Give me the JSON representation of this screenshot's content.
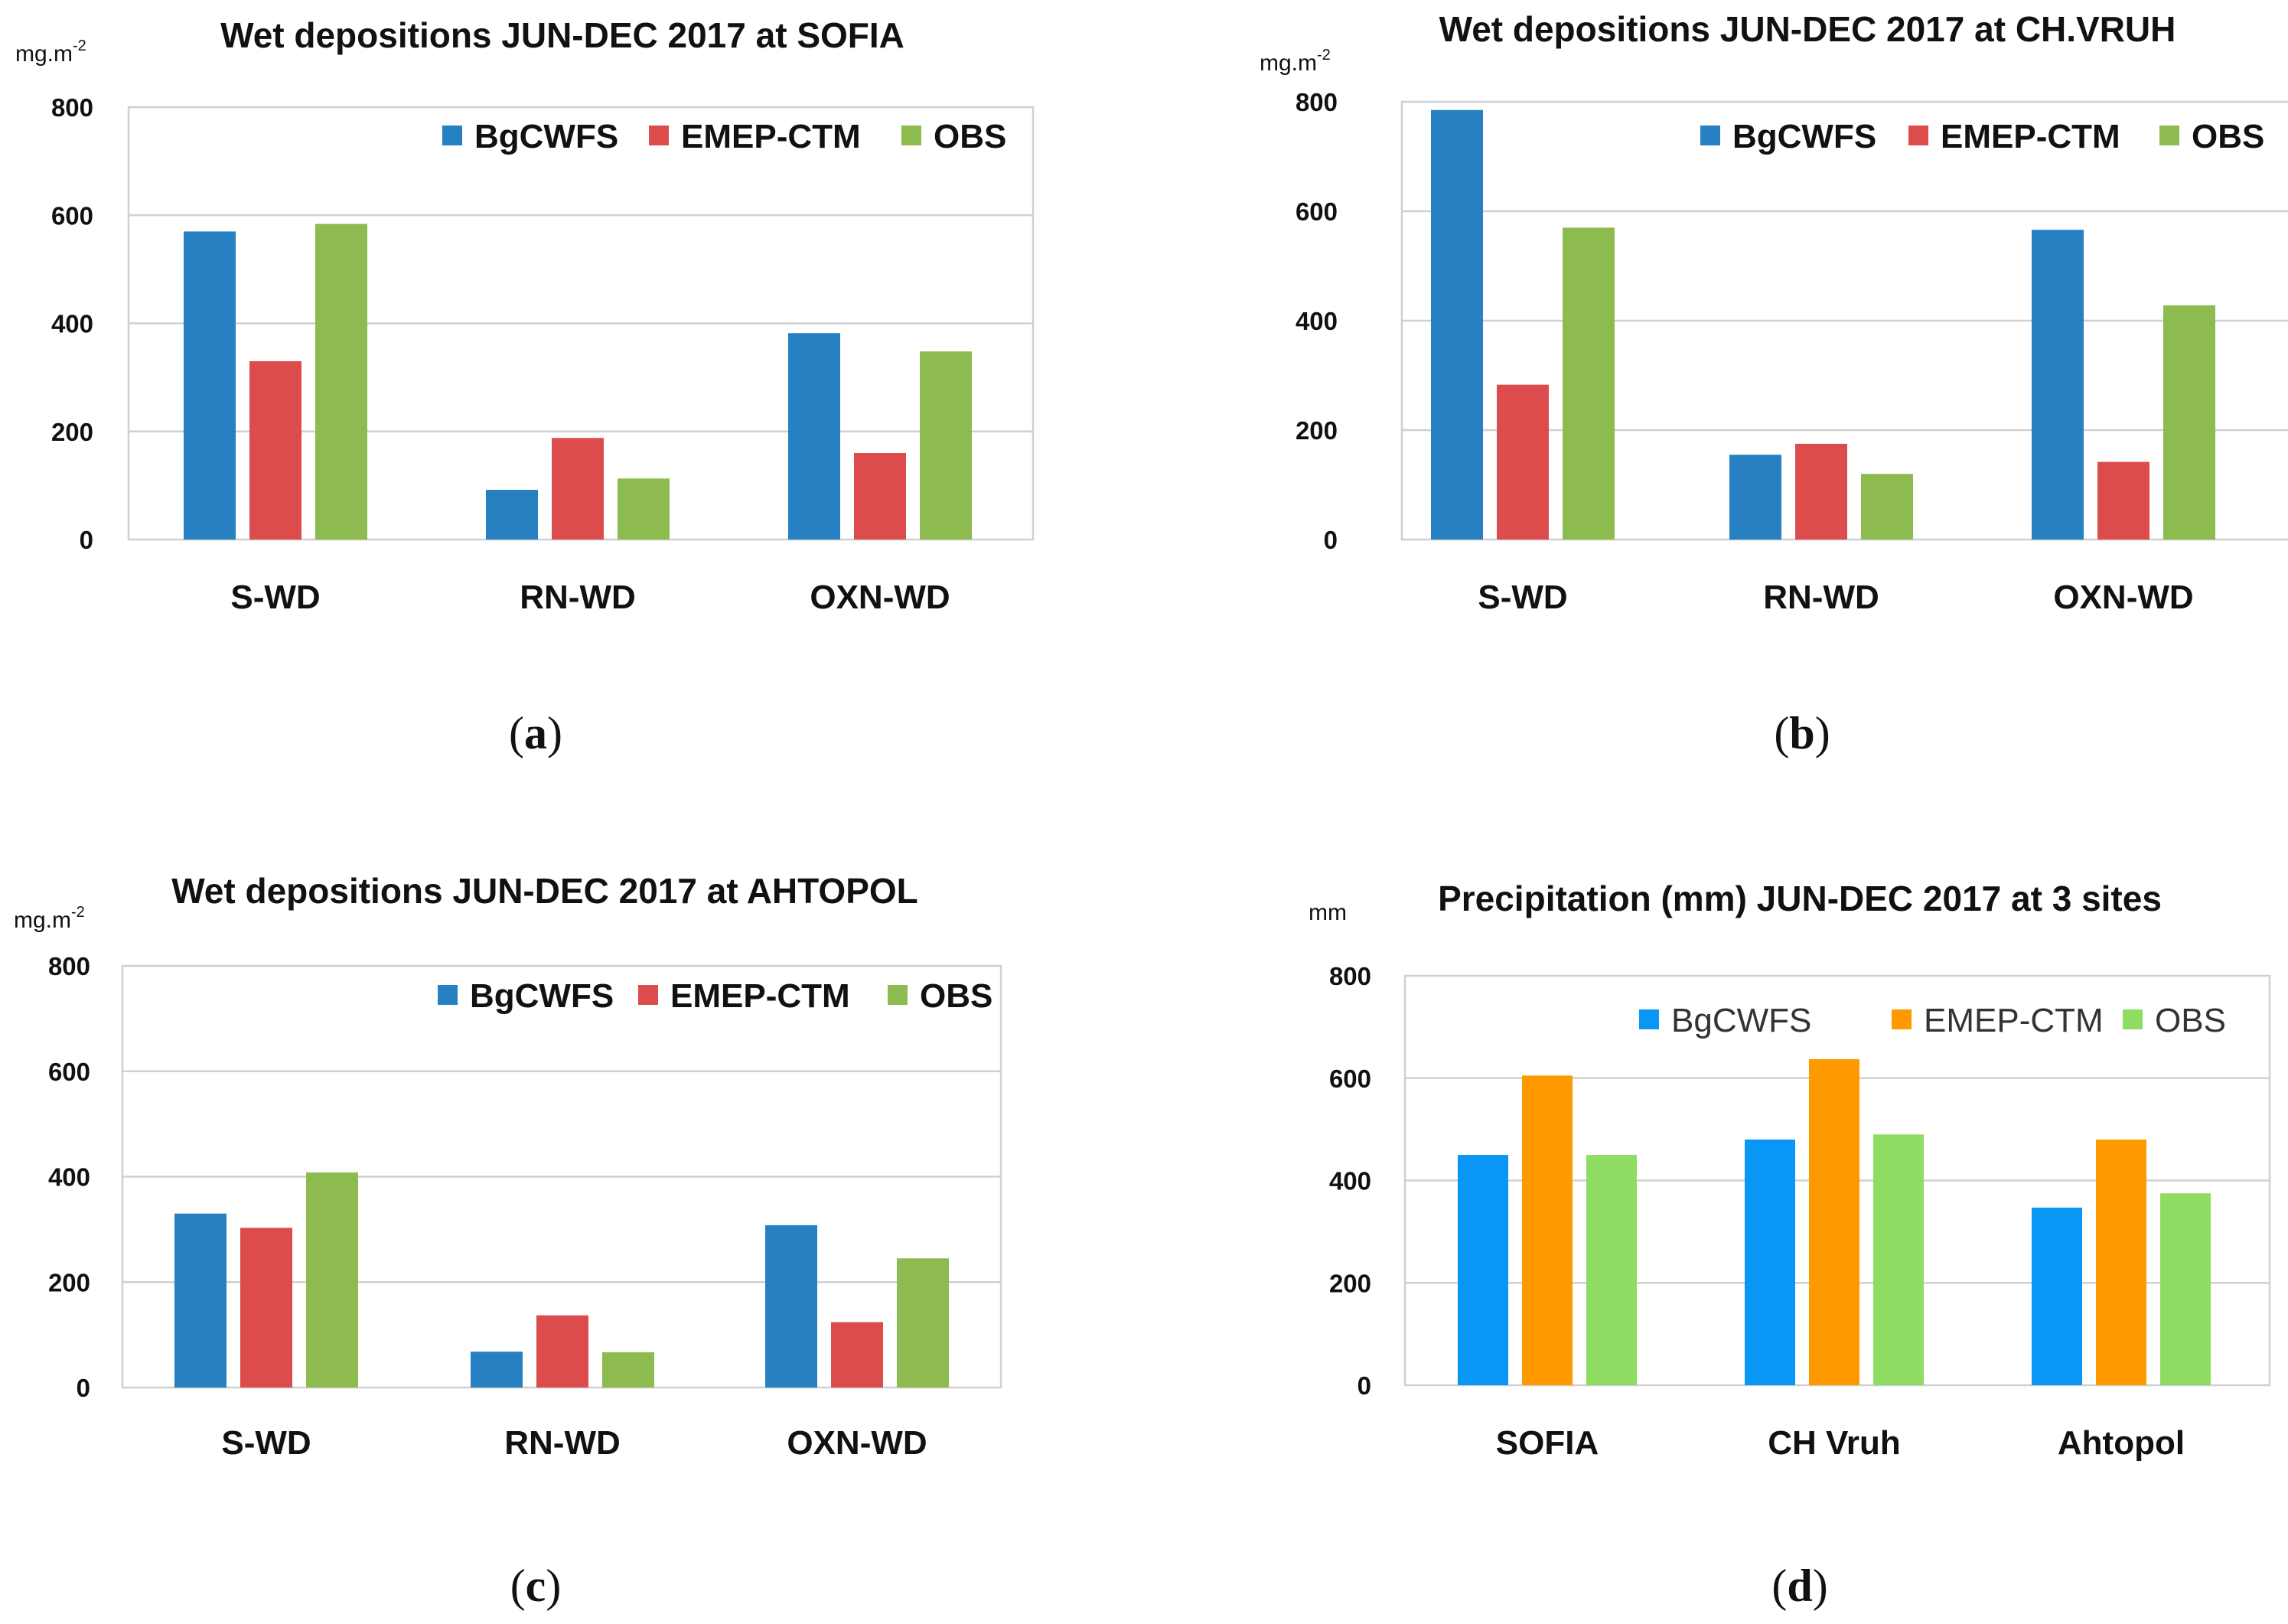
{
  "chart_data": [
    {
      "type": "bar",
      "id": "a",
      "title": "Wet depositions JUN-DEC 2017 at SOFIA",
      "unit": {
        "base": "mg.m",
        "sup": "-2"
      },
      "caption": "a",
      "categories": [
        "S-WD",
        "RN-WD",
        "OXN-WD"
      ],
      "ylim": [
        0,
        800
      ],
      "yticks": [
        0,
        200,
        400,
        600,
        800
      ],
      "grid": true,
      "legend_placement": "top-right",
      "series": [
        {
          "name": "BgCWFS",
          "color": "#2680C2",
          "values": [
            570,
            92,
            382
          ]
        },
        {
          "name": "EMEP-CTM",
          "color": "#DD4C4C",
          "values": [
            330,
            188,
            160
          ]
        },
        {
          "name": "OBS",
          "color": "#8DBB4F",
          "values": [
            584,
            113,
            348
          ]
        }
      ]
    },
    {
      "type": "bar",
      "id": "b",
      "title": "Wet depositions JUN-DEC 2017 at CH.VRUH",
      "unit": {
        "base": "mg.m",
        "sup": "-2"
      },
      "caption": "b",
      "categories": [
        "S-WD",
        "RN-WD",
        "OXN-WD"
      ],
      "ylim": [
        0,
        800
      ],
      "yticks": [
        0,
        200,
        400,
        600,
        800
      ],
      "grid": true,
      "legend_placement": "top-right",
      "series": [
        {
          "name": "BgCWFS",
          "color": "#2680C2",
          "values": [
            785,
            155,
            566
          ]
        },
        {
          "name": "EMEP-CTM",
          "color": "#DD4C4C",
          "values": [
            283,
            175,
            142
          ]
        },
        {
          "name": "OBS",
          "color": "#8DBB4F",
          "values": [
            570,
            120,
            428
          ]
        }
      ]
    },
    {
      "type": "bar",
      "id": "c",
      "title": "Wet depositions JUN-DEC 2017 at AHTOPOL",
      "unit": {
        "base": "mg.m",
        "sup": "-2"
      },
      "caption": "c",
      "categories": [
        "S-WD",
        "RN-WD",
        "OXN-WD"
      ],
      "ylim": [
        0,
        800
      ],
      "yticks": [
        0,
        200,
        400,
        600,
        800
      ],
      "grid": true,
      "legend_placement": "top-right",
      "series": [
        {
          "name": "BgCWFS",
          "color": "#2680C2",
          "values": [
            330,
            68,
            308
          ]
        },
        {
          "name": "EMEP-CTM",
          "color": "#DD4C4C",
          "values": [
            303,
            137,
            124
          ]
        },
        {
          "name": "OBS",
          "color": "#8DBB4F",
          "values": [
            408,
            67,
            245
          ]
        }
      ]
    },
    {
      "type": "bar",
      "id": "d",
      "title": "Precipitation (mm) JUN-DEC 2017 at  3 sites",
      "unit": {
        "base": "mm",
        "sup": ""
      },
      "caption": "d",
      "categories": [
        "SOFIA",
        "CH Vruh",
        "Ahtopol"
      ],
      "ylim": [
        0,
        800
      ],
      "yticks": [
        0,
        200,
        400,
        600,
        800
      ],
      "grid": true,
      "legend_placement": "top-right",
      "series": [
        {
          "name": "BgCWFS",
          "color": "#0A96F5",
          "values": [
            450,
            480,
            347
          ]
        },
        {
          "name": "EMEP-CTM",
          "color": "#FF9900",
          "values": [
            605,
            637,
            480
          ]
        },
        {
          "name": "OBS",
          "color": "#8FDC63",
          "values": [
            450,
            490,
            375
          ]
        }
      ]
    }
  ]
}
